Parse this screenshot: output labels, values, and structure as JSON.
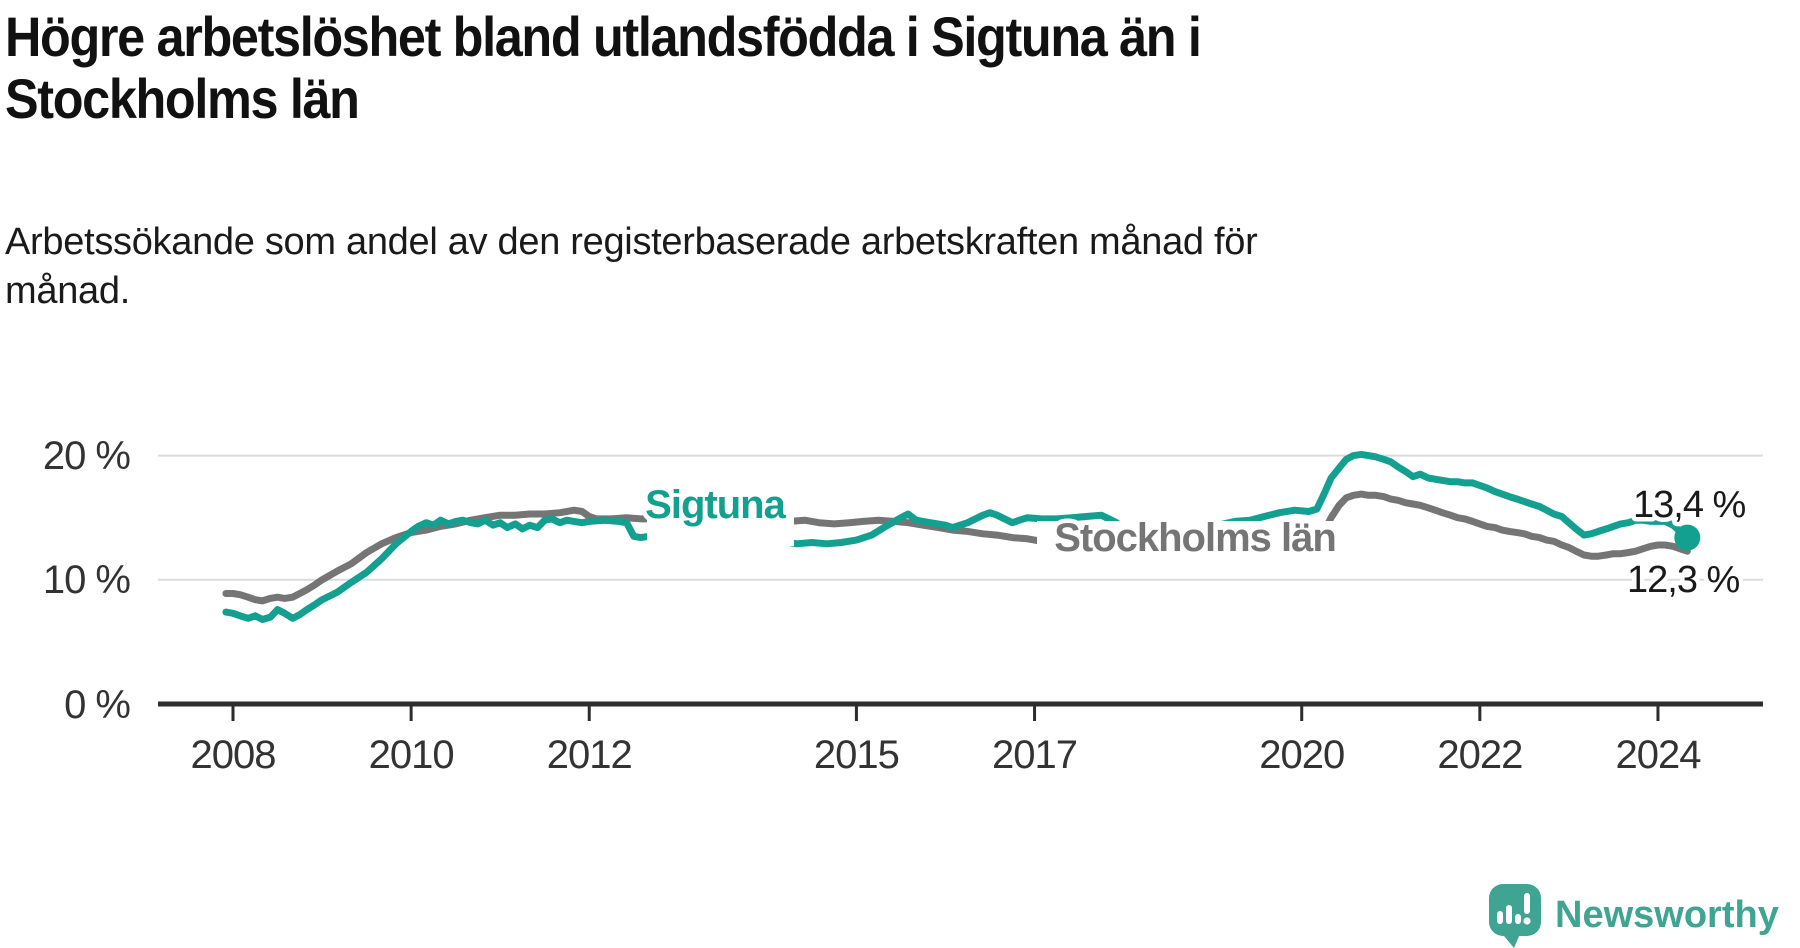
{
  "header": {
    "title_lines": [
      "Högre arbetslöshet bland utlandsfödda i Sigtuna än i",
      "Stockholms län"
    ],
    "subtitle_lines": [
      "Arbetssökande som andel av den registerbaserade arbetskraften månad för",
      "månad."
    ]
  },
  "chart_data": {
    "type": "line",
    "title": "Högre arbetslöshet bland utlandsfödda i Sigtuna än i Stockholms län",
    "subtitle": "Arbetssökande som andel av den registerbaserade arbetskraften månad för månad.",
    "xlabel": "",
    "ylabel": "",
    "xlim": [
      2007.2,
      2025.1
    ],
    "ylim": [
      0,
      21.3
    ],
    "grid": "horizontal",
    "x_ticks": [
      2008,
      2010,
      2012,
      2015,
      2017,
      2020,
      2022,
      2024
    ],
    "x_tick_labels": [
      "2008",
      "2010",
      "2012",
      "2015",
      "2017",
      "2020",
      "2022",
      "2024"
    ],
    "y_gridlines": [
      20,
      10
    ],
    "y_tick_labels": [
      "20 %",
      "10 %",
      "0 %"
    ],
    "series": [
      {
        "name": "Stockholms län",
        "color": "#757575",
        "points": [
          [
            2007.92,
            8.9
          ],
          [
            2008.0,
            8.9
          ],
          [
            2008.08,
            8.8
          ],
          [
            2008.17,
            8.6
          ],
          [
            2008.25,
            8.4
          ],
          [
            2008.33,
            8.3
          ],
          [
            2008.42,
            8.5
          ],
          [
            2008.5,
            8.6
          ],
          [
            2008.58,
            8.5
          ],
          [
            2008.67,
            8.6
          ],
          [
            2008.75,
            8.9
          ],
          [
            2008.83,
            9.2
          ],
          [
            2008.92,
            9.6
          ],
          [
            2009.0,
            10.0
          ],
          [
            2009.17,
            10.7
          ],
          [
            2009.33,
            11.3
          ],
          [
            2009.5,
            12.2
          ],
          [
            2009.67,
            12.9
          ],
          [
            2009.83,
            13.4
          ],
          [
            2010.0,
            13.8
          ],
          [
            2010.17,
            14.0
          ],
          [
            2010.33,
            14.3
          ],
          [
            2010.5,
            14.5
          ],
          [
            2010.67,
            14.8
          ],
          [
            2010.83,
            15.0
          ],
          [
            2011.0,
            15.2
          ],
          [
            2011.17,
            15.2
          ],
          [
            2011.33,
            15.3
          ],
          [
            2011.5,
            15.3
          ],
          [
            2011.67,
            15.4
          ],
          [
            2011.83,
            15.6
          ],
          [
            2011.92,
            15.5
          ],
          [
            2012.0,
            15.1
          ],
          [
            2012.08,
            14.9
          ],
          [
            2012.25,
            14.9
          ],
          [
            2012.42,
            15.0
          ],
          [
            2012.58,
            14.9
          ],
          [
            2012.75,
            14.9
          ],
          [
            2013.0,
            14.9
          ],
          [
            2013.25,
            14.8
          ],
          [
            2013.5,
            14.8
          ],
          [
            2013.75,
            14.7
          ],
          [
            2014.0,
            14.7
          ],
          [
            2014.25,
            14.7
          ],
          [
            2014.42,
            14.8
          ],
          [
            2014.58,
            14.6
          ],
          [
            2014.75,
            14.5
          ],
          [
            2014.92,
            14.6
          ],
          [
            2015.08,
            14.7
          ],
          [
            2015.25,
            14.8
          ],
          [
            2015.42,
            14.7
          ],
          [
            2015.58,
            14.6
          ],
          [
            2015.75,
            14.4
          ],
          [
            2015.92,
            14.2
          ],
          [
            2016.08,
            14.0
          ],
          [
            2016.25,
            13.9
          ],
          [
            2016.42,
            13.7
          ],
          [
            2016.58,
            13.6
          ],
          [
            2016.75,
            13.4
          ],
          [
            2016.92,
            13.3
          ],
          [
            2017.08,
            13.1
          ],
          [
            2017.25,
            13.0
          ],
          [
            2017.42,
            12.9
          ],
          [
            2017.58,
            12.8
          ],
          [
            2017.75,
            12.7
          ],
          [
            2017.92,
            12.6
          ],
          [
            2018.17,
            12.5
          ],
          [
            2018.42,
            12.5
          ],
          [
            2018.67,
            12.4
          ],
          [
            2019.0,
            12.4
          ],
          [
            2019.25,
            12.3
          ],
          [
            2019.5,
            12.3
          ],
          [
            2019.75,
            12.4
          ],
          [
            2019.92,
            12.5
          ],
          [
            2020.08,
            12.7
          ],
          [
            2020.17,
            13.1
          ],
          [
            2020.25,
            13.9
          ],
          [
            2020.33,
            15.0
          ],
          [
            2020.42,
            16.0
          ],
          [
            2020.5,
            16.6
          ],
          [
            2020.58,
            16.8
          ],
          [
            2020.67,
            16.9
          ],
          [
            2020.75,
            16.8
          ],
          [
            2020.83,
            16.8
          ],
          [
            2020.92,
            16.7
          ],
          [
            2021.0,
            16.5
          ],
          [
            2021.08,
            16.4
          ],
          [
            2021.17,
            16.2
          ],
          [
            2021.25,
            16.1
          ],
          [
            2021.33,
            16.0
          ],
          [
            2021.42,
            15.8
          ],
          [
            2021.5,
            15.6
          ],
          [
            2021.58,
            15.4
          ],
          [
            2021.67,
            15.2
          ],
          [
            2021.75,
            15.0
          ],
          [
            2021.83,
            14.9
          ],
          [
            2021.92,
            14.7
          ],
          [
            2022.0,
            14.5
          ],
          [
            2022.08,
            14.3
          ],
          [
            2022.17,
            14.2
          ],
          [
            2022.25,
            14.0
          ],
          [
            2022.33,
            13.9
          ],
          [
            2022.42,
            13.8
          ],
          [
            2022.5,
            13.7
          ],
          [
            2022.58,
            13.5
          ],
          [
            2022.67,
            13.4
          ],
          [
            2022.75,
            13.2
          ],
          [
            2022.83,
            13.1
          ],
          [
            2022.92,
            12.8
          ],
          [
            2023.0,
            12.6
          ],
          [
            2023.08,
            12.3
          ],
          [
            2023.17,
            12.0
          ],
          [
            2023.25,
            11.9
          ],
          [
            2023.33,
            11.9
          ],
          [
            2023.42,
            12.0
          ],
          [
            2023.5,
            12.1
          ],
          [
            2023.58,
            12.1
          ],
          [
            2023.67,
            12.2
          ],
          [
            2023.75,
            12.3
          ],
          [
            2023.83,
            12.5
          ],
          [
            2023.92,
            12.7
          ],
          [
            2024.0,
            12.8
          ],
          [
            2024.08,
            12.8
          ],
          [
            2024.17,
            12.7
          ],
          [
            2024.25,
            12.5
          ],
          [
            2024.33,
            12.3
          ]
        ]
      },
      {
        "name": "Sigtuna",
        "color": "#14a090",
        "points": [
          [
            2007.92,
            7.4
          ],
          [
            2008.0,
            7.3
          ],
          [
            2008.08,
            7.1
          ],
          [
            2008.17,
            6.9
          ],
          [
            2008.25,
            7.1
          ],
          [
            2008.33,
            6.8
          ],
          [
            2008.42,
            7.0
          ],
          [
            2008.5,
            7.6
          ],
          [
            2008.58,
            7.3
          ],
          [
            2008.67,
            6.9
          ],
          [
            2008.75,
            7.2
          ],
          [
            2008.83,
            7.6
          ],
          [
            2008.92,
            8.0
          ],
          [
            2009.0,
            8.4
          ],
          [
            2009.17,
            9.0
          ],
          [
            2009.33,
            9.8
          ],
          [
            2009.5,
            10.6
          ],
          [
            2009.67,
            11.7
          ],
          [
            2009.83,
            12.9
          ],
          [
            2010.0,
            13.9
          ],
          [
            2010.08,
            14.3
          ],
          [
            2010.17,
            14.6
          ],
          [
            2010.25,
            14.4
          ],
          [
            2010.33,
            14.8
          ],
          [
            2010.42,
            14.5
          ],
          [
            2010.5,
            14.7
          ],
          [
            2010.58,
            14.8
          ],
          [
            2010.67,
            14.6
          ],
          [
            2010.75,
            14.5
          ],
          [
            2010.83,
            14.8
          ],
          [
            2010.92,
            14.4
          ],
          [
            2011.0,
            14.6
          ],
          [
            2011.08,
            14.2
          ],
          [
            2011.17,
            14.5
          ],
          [
            2011.25,
            14.1
          ],
          [
            2011.33,
            14.4
          ],
          [
            2011.42,
            14.2
          ],
          [
            2011.5,
            14.8
          ],
          [
            2011.58,
            14.9
          ],
          [
            2011.67,
            14.6
          ],
          [
            2011.75,
            14.8
          ],
          [
            2011.83,
            14.7
          ],
          [
            2011.92,
            14.6
          ],
          [
            2012.0,
            14.7
          ],
          [
            2012.17,
            14.8
          ],
          [
            2012.33,
            14.7
          ],
          [
            2012.42,
            14.6
          ],
          [
            2012.5,
            13.5
          ],
          [
            2012.58,
            13.4
          ],
          [
            2012.67,
            13.5
          ],
          [
            2012.83,
            13.6
          ],
          [
            2013.0,
            13.5
          ],
          [
            2013.25,
            13.4
          ],
          [
            2013.5,
            13.2
          ],
          [
            2013.75,
            13.1
          ],
          [
            2014.0,
            13.0
          ],
          [
            2014.17,
            13.1
          ],
          [
            2014.33,
            12.9
          ],
          [
            2014.5,
            13.0
          ],
          [
            2014.67,
            12.9
          ],
          [
            2014.83,
            13.0
          ],
          [
            2015.0,
            13.2
          ],
          [
            2015.17,
            13.6
          ],
          [
            2015.33,
            14.3
          ],
          [
            2015.5,
            15.0
          ],
          [
            2015.58,
            15.3
          ],
          [
            2015.67,
            14.8
          ],
          [
            2015.83,
            14.6
          ],
          [
            2016.0,
            14.4
          ],
          [
            2016.08,
            14.2
          ],
          [
            2016.25,
            14.6
          ],
          [
            2016.42,
            15.2
          ],
          [
            2016.5,
            15.4
          ],
          [
            2016.58,
            15.2
          ],
          [
            2016.75,
            14.6
          ],
          [
            2016.83,
            14.8
          ],
          [
            2016.92,
            15.0
          ],
          [
            2017.08,
            14.9
          ],
          [
            2017.25,
            14.9
          ],
          [
            2017.42,
            15.0
          ],
          [
            2017.58,
            15.1
          ],
          [
            2017.75,
            15.2
          ],
          [
            2017.92,
            14.6
          ],
          [
            2018.08,
            13.8
          ],
          [
            2018.25,
            13.2
          ],
          [
            2018.42,
            13.3
          ],
          [
            2018.58,
            13.6
          ],
          [
            2018.75,
            13.9
          ],
          [
            2019.0,
            14.3
          ],
          [
            2019.25,
            14.7
          ],
          [
            2019.42,
            14.8
          ],
          [
            2019.58,
            15.1
          ],
          [
            2019.75,
            15.4
          ],
          [
            2019.92,
            15.6
          ],
          [
            2020.08,
            15.5
          ],
          [
            2020.17,
            15.7
          ],
          [
            2020.25,
            16.9
          ],
          [
            2020.33,
            18.2
          ],
          [
            2020.42,
            19.0
          ],
          [
            2020.5,
            19.7
          ],
          [
            2020.58,
            20.0
          ],
          [
            2020.67,
            20.1
          ],
          [
            2020.75,
            20.0
          ],
          [
            2020.83,
            19.9
          ],
          [
            2020.92,
            19.7
          ],
          [
            2021.0,
            19.5
          ],
          [
            2021.08,
            19.1
          ],
          [
            2021.17,
            18.7
          ],
          [
            2021.25,
            18.3
          ],
          [
            2021.33,
            18.5
          ],
          [
            2021.42,
            18.2
          ],
          [
            2021.5,
            18.1
          ],
          [
            2021.58,
            18.0
          ],
          [
            2021.67,
            17.9
          ],
          [
            2021.75,
            17.9
          ],
          [
            2021.83,
            17.8
          ],
          [
            2021.92,
            17.8
          ],
          [
            2022.0,
            17.6
          ],
          [
            2022.08,
            17.4
          ],
          [
            2022.17,
            17.1
          ],
          [
            2022.25,
            16.9
          ],
          [
            2022.33,
            16.7
          ],
          [
            2022.42,
            16.5
          ],
          [
            2022.5,
            16.3
          ],
          [
            2022.58,
            16.1
          ],
          [
            2022.67,
            15.9
          ],
          [
            2022.75,
            15.6
          ],
          [
            2022.83,
            15.3
          ],
          [
            2022.92,
            15.1
          ],
          [
            2023.0,
            14.6
          ],
          [
            2023.08,
            14.1
          ],
          [
            2023.17,
            13.6
          ],
          [
            2023.25,
            13.7
          ],
          [
            2023.33,
            13.9
          ],
          [
            2023.42,
            14.1
          ],
          [
            2023.5,
            14.3
          ],
          [
            2023.58,
            14.5
          ],
          [
            2023.67,
            14.6
          ],
          [
            2023.75,
            14.8
          ],
          [
            2023.83,
            14.8
          ],
          [
            2023.92,
            14.7
          ],
          [
            2024.0,
            14.7
          ],
          [
            2024.08,
            14.7
          ],
          [
            2024.17,
            14.4
          ],
          [
            2024.25,
            13.9
          ],
          [
            2024.33,
            13.4
          ]
        ]
      }
    ],
    "end_labels": [
      {
        "series": "Sigtuna",
        "text": "13,4 %",
        "value": 13.4
      },
      {
        "series": "Stockholms län",
        "text": "12,3 %",
        "value": 12.3
      }
    ],
    "end_dot_series": "Sigtuna",
    "legend_position": "inline-labels"
  },
  "logo": {
    "text": "Newsworthy",
    "color": "#3fa492"
  }
}
